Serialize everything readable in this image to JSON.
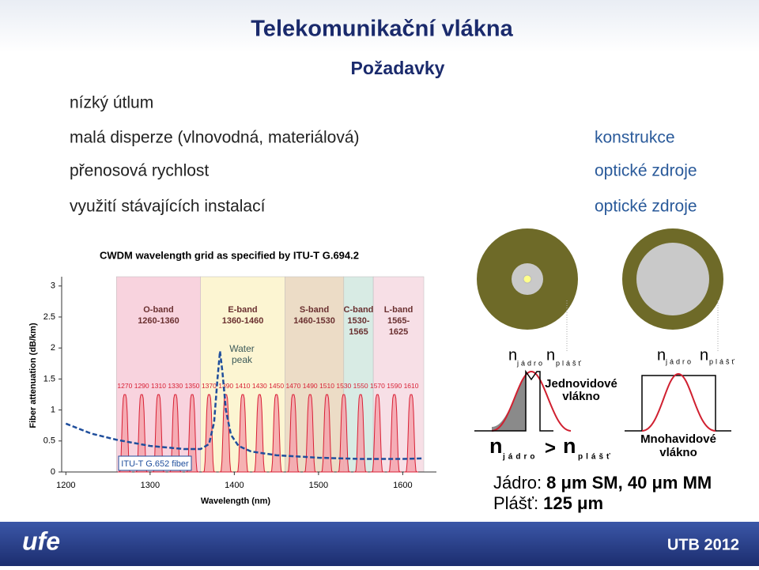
{
  "header": {
    "title": "Telekomunikační vlákna",
    "subtitle": "Požadavky"
  },
  "requirements": [
    "nízký útlum",
    "malá disperze (vlnovodná, materiálová)",
    "přenosová rychlost",
    "využití stávajících instalací"
  ],
  "factors": [
    "konstrukce",
    "optické zdroje",
    "optické zdroje"
  ],
  "chart_data": {
    "type": "cwdm",
    "title": "CWDM wavelength grid as specified by ITU-T G.694.2",
    "xlabel": "Wavelength (nm)",
    "ylabel": "Fiber attenuation (dB/km)",
    "xlim": [
      1195,
      1640
    ],
    "ylim": [
      0,
      3.15
    ],
    "xticks": [
      1200,
      1300,
      1400,
      1500,
      1600
    ],
    "yticks": [
      0,
      0.5,
      1,
      1.5,
      2,
      2.5,
      3
    ],
    "bands": [
      {
        "name": "O-band",
        "range": [
          "1260-1360"
        ],
        "start": 1260,
        "end": 1360,
        "color": "#f8d3de"
      },
      {
        "name": "E-band",
        "range": [
          "1360-1460"
        ],
        "start": 1360,
        "end": 1460,
        "color": "#fcf5d2"
      },
      {
        "name": "S-band",
        "range": [
          "1460-1530"
        ],
        "start": 1460,
        "end": 1530,
        "color": "#ecdcc6"
      },
      {
        "name": "C-band",
        "range": [
          "1530-",
          "1565"
        ],
        "start": 1530,
        "end": 1565,
        "color": "#d8ebe4"
      },
      {
        "name": "L-band",
        "range": [
          "1565-",
          "1625"
        ],
        "start": 1565,
        "end": 1625,
        "color": "#f7dfe6"
      }
    ],
    "channels": [
      1270,
      1290,
      1310,
      1330,
      1350,
      1370,
      1390,
      1410,
      1430,
      1450,
      1470,
      1490,
      1510,
      1530,
      1550,
      1570,
      1590,
      1610
    ],
    "channel_peak": 1.25,
    "channel_color": "#d82035",
    "fiber": {
      "name": "ITU-T G.652 fiber",
      "color": "#1f4e9c",
      "x": [
        1200,
        1230,
        1260,
        1300,
        1340,
        1360,
        1370,
        1376,
        1380,
        1383,
        1386,
        1390,
        1396,
        1405,
        1420,
        1450,
        1500,
        1550,
        1600,
        1625
      ],
      "values": [
        0.78,
        0.62,
        0.52,
        0.42,
        0.37,
        0.37,
        0.45,
        0.8,
        1.5,
        1.95,
        1.6,
        1.0,
        0.6,
        0.42,
        0.33,
        0.27,
        0.23,
        0.21,
        0.21,
        0.22
      ]
    },
    "annotation": [
      "Water",
      "peak"
    ]
  },
  "fibers": {
    "single_mode": {
      "n_core": "n",
      "core": "jádro",
      "n_clad": "n",
      "clad": "plášť",
      "name": [
        "Jednovidové",
        "vlákno"
      ]
    },
    "multi_mode": {
      "n_core": "n",
      "core": "jádro",
      "n_clad": "n",
      "clad": "plášť",
      "name": [
        "Mnohavidové",
        "vlákno"
      ]
    }
  },
  "inequality": {
    "left": "n",
    "left_sub": "jádro",
    "op": ">",
    "right": "n",
    "right_sub": "plášť"
  },
  "dimensions": [
    {
      "label": "Jádro:",
      "value": "8 μm SM, 40 μm MM"
    },
    {
      "label": "Plášť:",
      "value": "125 μm"
    }
  ],
  "footer": {
    "logo": "ufe",
    "text": "UTB 2012"
  }
}
